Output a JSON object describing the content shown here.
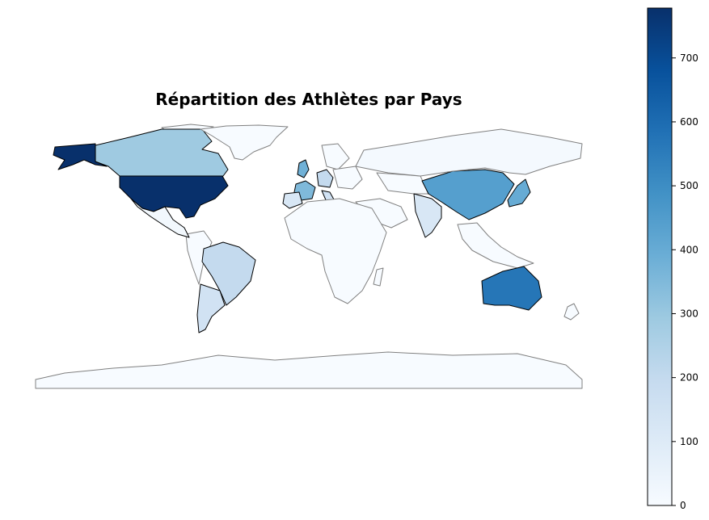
{
  "chart_data": {
    "type": "choropleth",
    "title": "Répartition des Athlètes par Pays",
    "colormap": "Blues",
    "colorbar": {
      "range": [
        0,
        778
      ],
      "ticks": [
        0,
        100,
        200,
        300,
        400,
        500,
        600,
        700
      ],
      "tick_labels": [
        "0",
        "100",
        "200",
        "300",
        "400",
        "500",
        "600",
        "700"
      ]
    },
    "regions": [
      {
        "name": "United States",
        "value": 778
      },
      {
        "name": "Alaska (United States)",
        "value": 778
      },
      {
        "name": "Canada",
        "value": 290
      },
      {
        "name": "Greenland",
        "value": 0
      },
      {
        "name": "Mexico",
        "value": 20
      },
      {
        "name": "Brazil",
        "value": 200
      },
      {
        "name": "Argentina",
        "value": 150
      },
      {
        "name": "China",
        "value": 440
      },
      {
        "name": "Australia",
        "value": 570
      },
      {
        "name": "India",
        "value": 120
      },
      {
        "name": "Russia",
        "value": 10
      },
      {
        "name": "France",
        "value": 350
      },
      {
        "name": "United Kingdom",
        "value": 380
      },
      {
        "name": "Germany",
        "value": 200
      },
      {
        "name": "Italy",
        "value": 150
      },
      {
        "name": "Spain",
        "value": 120
      },
      {
        "name": "Japan",
        "value": 400
      },
      {
        "name": "Antarctica",
        "value": 0
      },
      {
        "name": "Africa",
        "value": 0
      }
    ]
  }
}
